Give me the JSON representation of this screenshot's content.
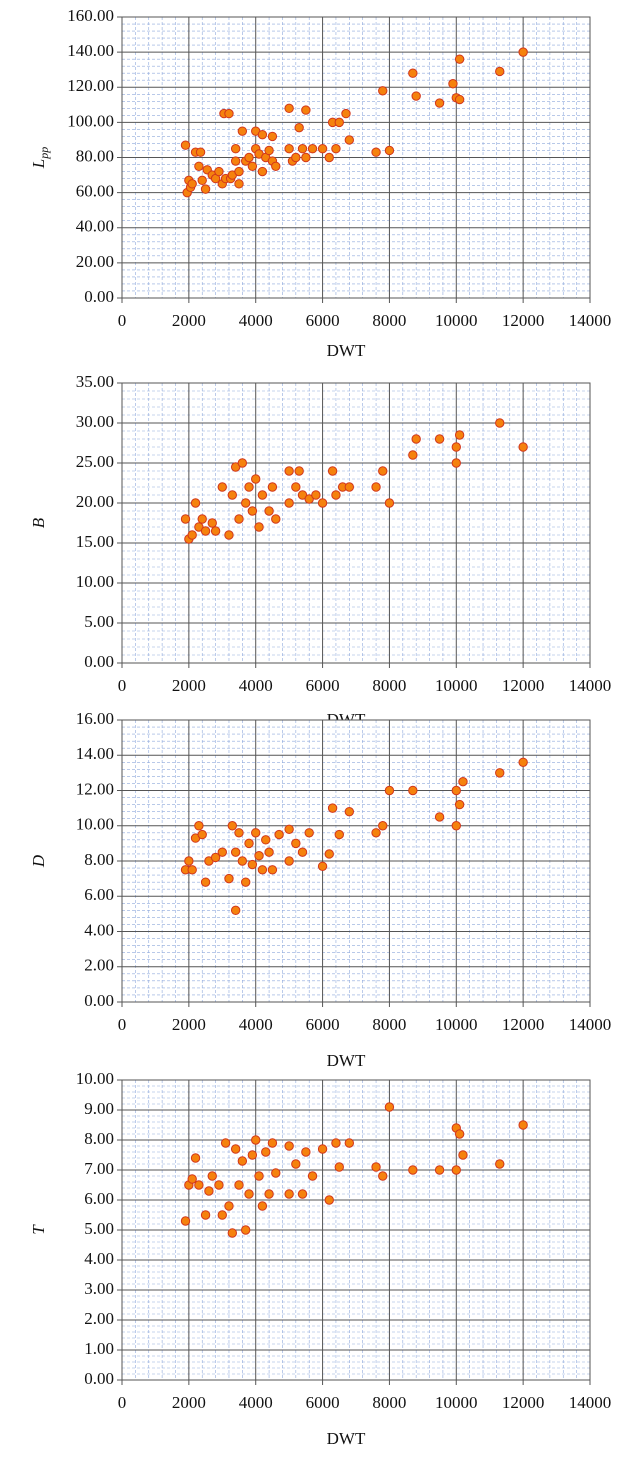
{
  "chart_data": [
    {
      "type": "scatter",
      "x_label": "DWT",
      "y_label": "L",
      "y_label_subscript": "pp",
      "color": "#f5820d",
      "grid": true,
      "xlim": [
        0,
        14000
      ],
      "xticks": [
        0,
        2000,
        4000,
        6000,
        8000,
        10000,
        12000,
        14000
      ],
      "ylim": [
        0,
        160
      ],
      "yticks": [
        {
          "value": 0,
          "label": "0.00"
        },
        {
          "value": 20,
          "label": "20.00"
        },
        {
          "value": 40,
          "label": "40.00"
        },
        {
          "value": 60,
          "label": "60.00"
        },
        {
          "value": 80,
          "label": "80.00"
        },
        {
          "value": 100,
          "label": "100.00"
        },
        {
          "value": 120,
          "label": "120.00"
        },
        {
          "value": 140,
          "label": "140.00"
        },
        {
          "value": 160,
          "label": "160.00"
        }
      ],
      "x": [
        1900,
        1950,
        2000,
        2050,
        2100,
        2200,
        2300,
        2350,
        2400,
        2500,
        2550,
        2700,
        2800,
        2900,
        3000,
        3050,
        3100,
        3200,
        3250,
        3300,
        3400,
        3400,
        3500,
        3500,
        3600,
        3700,
        3800,
        3900,
        4000,
        4000,
        4100,
        4200,
        4200,
        4300,
        4400,
        4500,
        4500,
        4600,
        5000,
        5000,
        5100,
        5200,
        5300,
        5400,
        5500,
        5500,
        5700,
        6000,
        6200,
        6300,
        6400,
        6500,
        6700,
        6800,
        7600,
        7800,
        8000,
        8700,
        8800,
        9500,
        9900,
        10000,
        10100,
        10100,
        11300,
        12000
      ],
      "y": [
        87,
        60,
        67,
        63,
        65,
        83,
        75,
        83,
        67,
        62,
        73,
        70,
        68,
        72,
        65,
        105,
        68,
        105,
        68,
        70,
        85,
        78,
        65,
        72,
        95,
        78,
        80,
        75,
        95,
        85,
        82,
        93,
        72,
        80,
        84,
        92,
        78,
        75,
        108,
        85,
        78,
        80,
        97,
        85,
        107,
        80,
        85,
        85,
        80,
        100,
        85,
        100,
        105,
        90,
        83,
        118,
        84,
        128,
        115,
        111,
        122,
        114,
        136,
        113,
        129,
        140
      ]
    },
    {
      "type": "scatter",
      "x_label": "DWT",
      "y_label": "B",
      "color": "#f5820d",
      "grid": true,
      "xlim": [
        0,
        14000
      ],
      "xticks": [
        0,
        2000,
        4000,
        6000,
        8000,
        10000,
        12000,
        14000
      ],
      "ylim": [
        0,
        35
      ],
      "yticks": [
        {
          "value": 0,
          "label": "0.00"
        },
        {
          "value": 5,
          "label": "5.00"
        },
        {
          "value": 10,
          "label": "10.00"
        },
        {
          "value": 15,
          "label": "15.00"
        },
        {
          "value": 20,
          "label": "20.00"
        },
        {
          "value": 25,
          "label": "25.00"
        },
        {
          "value": 30,
          "label": "30.00"
        },
        {
          "value": 35,
          "label": "35.00"
        }
      ],
      "x": [
        1900,
        2000,
        2100,
        2200,
        2300,
        2400,
        2500,
        2700,
        2800,
        3000,
        3200,
        3300,
        3400,
        3500,
        3600,
        3700,
        3800,
        3900,
        4000,
        4100,
        4200,
        4400,
        4500,
        4600,
        5000,
        5000,
        5200,
        5300,
        5400,
        5600,
        5800,
        6000,
        6300,
        6400,
        6600,
        6800,
        7600,
        7800,
        8000,
        8700,
        8800,
        9500,
        10000,
        10000,
        10100,
        11300,
        12000
      ],
      "y": [
        18,
        15.5,
        16,
        20,
        17,
        18,
        16.5,
        17.5,
        16.5,
        22,
        16,
        21,
        24.5,
        18,
        25,
        20,
        22,
        19,
        23,
        17,
        21,
        19,
        22,
        18,
        20,
        24,
        22,
        24,
        21,
        20.5,
        21,
        20,
        24,
        21,
        22,
        22,
        22,
        24,
        20,
        26,
        28,
        28,
        25,
        27,
        28.5,
        30,
        27
      ]
    },
    {
      "type": "scatter",
      "x_label": "DWT",
      "y_label": "D",
      "color": "#f5820d",
      "grid": true,
      "xlim": [
        0,
        14000
      ],
      "xticks": [
        0,
        2000,
        4000,
        6000,
        8000,
        10000,
        12000,
        14000
      ],
      "ylim": [
        0,
        16
      ],
      "yticks": [
        {
          "value": 0,
          "label": "0.00"
        },
        {
          "value": 2,
          "label": "2.00"
        },
        {
          "value": 4,
          "label": "4.00"
        },
        {
          "value": 6,
          "label": "6.00"
        },
        {
          "value": 8,
          "label": "8.00"
        },
        {
          "value": 10,
          "label": "10.00"
        },
        {
          "value": 12,
          "label": "12.00"
        },
        {
          "value": 14,
          "label": "14.00"
        },
        {
          "value": 16,
          "label": "16.00"
        }
      ],
      "x": [
        1900,
        2000,
        2100,
        2200,
        2300,
        2400,
        2500,
        2600,
        2800,
        3000,
        3200,
        3300,
        3400,
        3400,
        3500,
        3600,
        3700,
        3800,
        3900,
        4000,
        4100,
        4200,
        4300,
        4400,
        4500,
        4700,
        5000,
        5000,
        5200,
        5400,
        5600,
        6000,
        6200,
        6300,
        6500,
        6800,
        7600,
        7800,
        8000,
        8700,
        9500,
        10000,
        10000,
        10100,
        10200,
        11300,
        12000
      ],
      "y": [
        7.5,
        8,
        7.5,
        9.3,
        10,
        9.5,
        6.8,
        8,
        8.2,
        8.5,
        7,
        10,
        5.2,
        8.5,
        9.6,
        8,
        6.8,
        9,
        7.8,
        9.6,
        8.3,
        7.5,
        9.2,
        8.5,
        7.5,
        9.5,
        9.8,
        8,
        9,
        8.5,
        9.6,
        7.7,
        8.4,
        11,
        9.5,
        10.8,
        9.6,
        10,
        12,
        12,
        10.5,
        10,
        12,
        11.2,
        12.5,
        13,
        13.6
      ]
    },
    {
      "type": "scatter",
      "x_label": "DWT",
      "y_label": "T",
      "color": "#f5820d",
      "grid": true,
      "xlim": [
        0,
        14000
      ],
      "xticks": [
        0,
        2000,
        4000,
        6000,
        8000,
        10000,
        12000,
        14000
      ],
      "ylim": [
        0,
        10
      ],
      "yticks": [
        {
          "value": 0,
          "label": "0.00"
        },
        {
          "value": 1,
          "label": "1.00"
        },
        {
          "value": 2,
          "label": "2.00"
        },
        {
          "value": 3,
          "label": "3.00"
        },
        {
          "value": 4,
          "label": "4.00"
        },
        {
          "value": 5,
          "label": "5.00"
        },
        {
          "value": 6,
          "label": "6.00"
        },
        {
          "value": 7,
          "label": "7.00"
        },
        {
          "value": 8,
          "label": "8.00"
        },
        {
          "value": 9,
          "label": "9.00"
        },
        {
          "value": 10,
          "label": "10.00"
        }
      ],
      "x": [
        1900,
        2000,
        2100,
        2200,
        2300,
        2500,
        2600,
        2700,
        2900,
        3000,
        3100,
        3200,
        3300,
        3400,
        3500,
        3600,
        3700,
        3800,
        3900,
        4000,
        4100,
        4200,
        4300,
        4400,
        4500,
        4600,
        5000,
        5000,
        5200,
        5400,
        5500,
        5700,
        6000,
        6200,
        6400,
        6500,
        6800,
        7600,
        7800,
        8000,
        8700,
        9500,
        10000,
        10000,
        10100,
        10200,
        11300,
        12000
      ],
      "y": [
        5.3,
        6.5,
        6.7,
        7.4,
        6.5,
        5.5,
        6.3,
        6.8,
        6.5,
        5.5,
        7.9,
        5.8,
        4.9,
        7.7,
        6.5,
        7.3,
        5,
        6.2,
        7.5,
        8,
        6.8,
        5.8,
        7.6,
        6.2,
        7.9,
        6.9,
        7.8,
        6.2,
        7.2,
        6.2,
        7.6,
        6.8,
        7.7,
        6,
        7.9,
        7.1,
        7.9,
        7.1,
        6.8,
        9.1,
        7,
        7,
        8.4,
        7,
        8.2,
        7.5,
        7.2,
        8.5
      ]
    }
  ]
}
